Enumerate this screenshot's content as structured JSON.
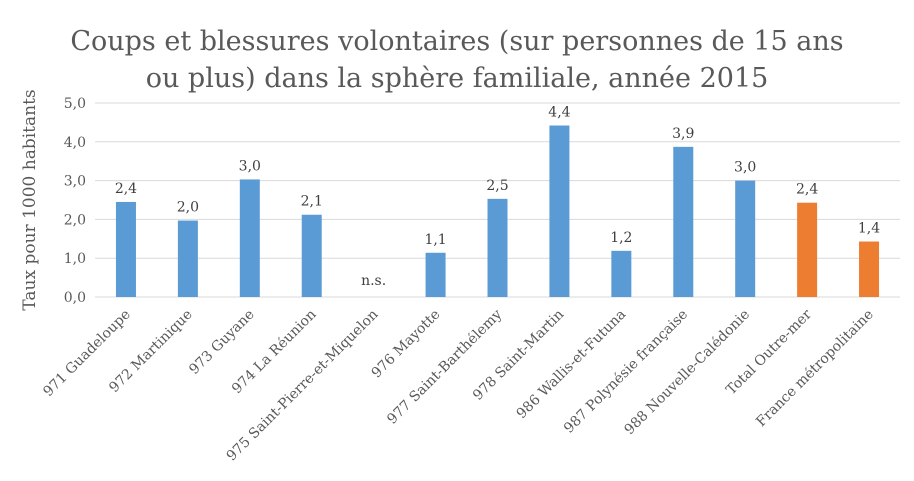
{
  "chart_data": {
    "type": "bar",
    "title": [
      "Coups et blessures volontaires (sur personnes de 15 ans",
      "ou plus) dans la sphère familiale, année 2015"
    ],
    "xlabel": "",
    "ylabel": "Taux pour 1000 habitants",
    "ylim": [
      0,
      5
    ],
    "yticks": [
      0,
      1,
      2,
      3,
      4,
      5
    ],
    "ytick_labels": [
      "0,0",
      "1,0",
      "2,0",
      "3,0",
      "4,0",
      "5,0"
    ],
    "grid": true,
    "legend": "none",
    "categories": [
      "971 Guadeloupe",
      "972 Martinique",
      "973 Guyane",
      "974 La Réunion",
      "975 Saint-Pierre-et-Miquelon",
      "976 Mayotte",
      "977 Saint-Barthélemy",
      "978 Saint-Martin",
      "986 Wallis-et-Futuna",
      "987 Polynésie française",
      "988 Nouvelle-Calédonie",
      "Total Outre-mer",
      "France métropolitaine"
    ],
    "values": [
      2.45,
      1.97,
      3.03,
      2.12,
      null,
      1.14,
      2.53,
      4.42,
      1.19,
      3.87,
      3.0,
      2.43,
      1.43
    ],
    "data_labels": [
      "2,4",
      "2,0",
      "3,0",
      "2,1",
      "n.s.",
      "1,1",
      "2,5",
      "4,4",
      "1,2",
      "3,9",
      "3,0",
      "2,4",
      "1,4"
    ],
    "bar_groups": [
      "overseas",
      "overseas",
      "overseas",
      "overseas",
      "overseas",
      "overseas",
      "overseas",
      "overseas",
      "overseas",
      "overseas",
      "overseas",
      "aggregate",
      "aggregate"
    ],
    "colors": {
      "overseas": "#5B9BD5",
      "aggregate": "#ED7D31"
    }
  }
}
